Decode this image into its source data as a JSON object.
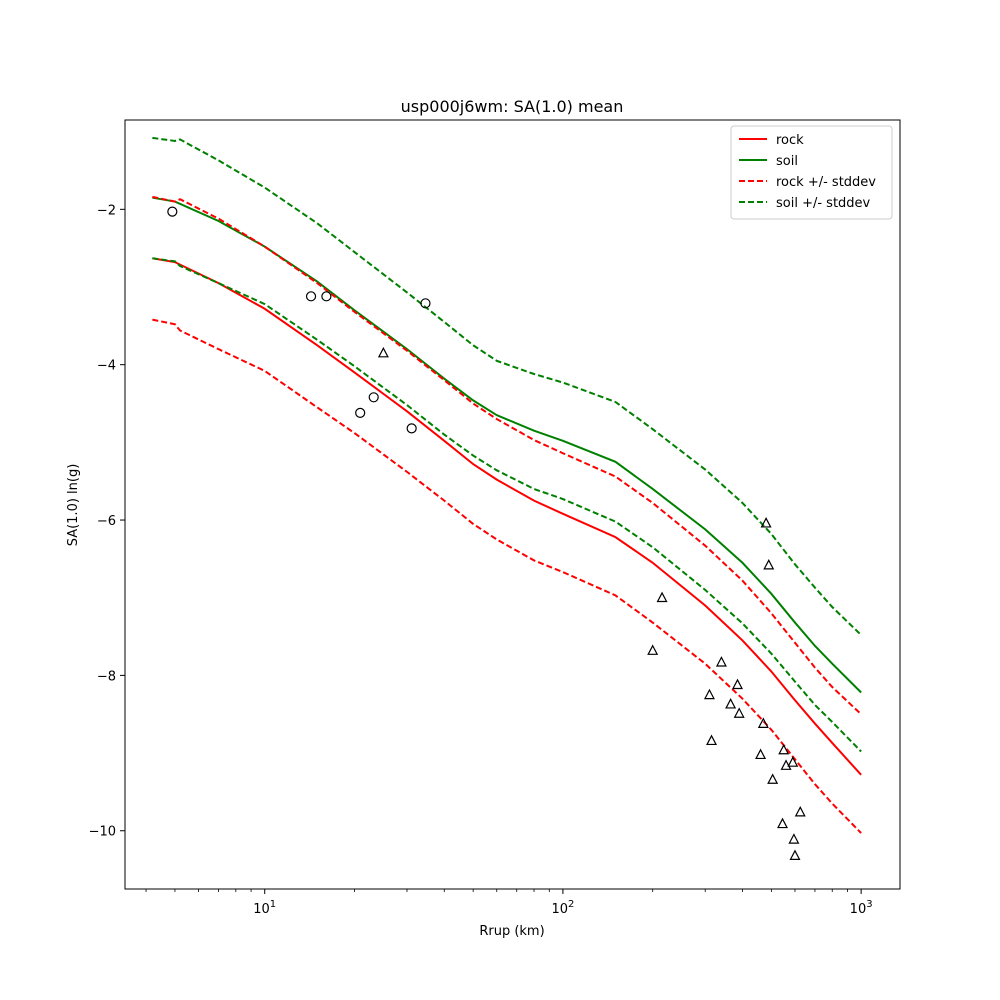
{
  "chart_data": {
    "type": "line",
    "title": "usp000j6wm: SA(1.0) mean",
    "xlabel": "Rrup (km)",
    "ylabel": "SA(1.0) ln(g)",
    "xscale": "log",
    "xlim": [
      3.4,
      1350
    ],
    "ylim": [
      -10.75,
      -0.85
    ],
    "x_ticks": [
      {
        "value": 10,
        "base": "10",
        "exp": "1"
      },
      {
        "value": 100,
        "base": "10",
        "exp": "2"
      },
      {
        "value": 1000,
        "base": "10",
        "exp": "3"
      }
    ],
    "y_ticks": [
      {
        "value": -10,
        "label": "−10"
      },
      {
        "value": -8,
        "label": "−8"
      },
      {
        "value": -6,
        "label": "−6"
      },
      {
        "value": -4,
        "label": "−4"
      },
      {
        "value": -2,
        "label": "−2"
      }
    ],
    "grid": false,
    "legend_position": "top-right",
    "series": [
      {
        "name": "rock",
        "color": "#ff0000",
        "style": "solid",
        "x": [
          4.2,
          5,
          7,
          10,
          15,
          20,
          30,
          40,
          50,
          60,
          80,
          100,
          150,
          200,
          300,
          400,
          500,
          600,
          700,
          800,
          1000
        ],
        "y": [
          -2.63,
          -2.68,
          -2.95,
          -3.28,
          -3.75,
          -4.1,
          -4.6,
          -4.98,
          -5.28,
          -5.48,
          -5.75,
          -5.92,
          -6.22,
          -6.55,
          -7.1,
          -7.55,
          -7.95,
          -8.32,
          -8.62,
          -8.87,
          -9.28
        ]
      },
      {
        "name": "soil",
        "color": "#008000",
        "style": "solid",
        "x": [
          4.2,
          5,
          7,
          10,
          15,
          20,
          30,
          40,
          50,
          60,
          80,
          100,
          150,
          200,
          300,
          400,
          500,
          600,
          700,
          800,
          1000
        ],
        "y": [
          -1.85,
          -1.9,
          -2.15,
          -2.48,
          -2.93,
          -3.3,
          -3.8,
          -4.18,
          -4.46,
          -4.65,
          -4.85,
          -4.98,
          -5.25,
          -5.6,
          -6.12,
          -6.55,
          -6.95,
          -7.32,
          -7.62,
          -7.85,
          -8.22
        ]
      },
      {
        "name": "rock +/- stddev",
        "color": "#ff0000",
        "style": "dashed",
        "x": [
          4.2,
          5,
          5.2,
          7,
          10,
          15,
          20,
          30,
          40,
          50,
          60,
          80,
          100,
          150,
          200,
          300,
          400,
          500,
          600,
          700,
          800,
          1000
        ],
        "y": [
          -3.42,
          -3.48,
          -3.56,
          -3.8,
          -4.08,
          -4.55,
          -4.88,
          -5.38,
          -5.75,
          -6.05,
          -6.25,
          -6.52,
          -6.67,
          -6.97,
          -7.32,
          -7.85,
          -8.3,
          -8.7,
          -9.08,
          -9.4,
          -9.65,
          -10.03
        ]
      },
      {
        "name": "rock +/- stddev",
        "color": "#ff0000",
        "style": "dashed",
        "x": [
          4.2,
          5,
          5.2,
          7,
          10,
          15,
          20,
          30,
          40,
          50,
          60,
          80,
          100,
          150,
          200,
          300,
          400,
          500,
          600,
          700,
          800,
          1000
        ],
        "y": [
          -1.84,
          -1.9,
          -1.87,
          -2.12,
          -2.48,
          -2.95,
          -3.32,
          -3.82,
          -4.2,
          -4.5,
          -4.7,
          -4.97,
          -5.14,
          -5.44,
          -5.78,
          -6.33,
          -6.78,
          -7.2,
          -7.58,
          -7.9,
          -8.15,
          -8.5
        ]
      },
      {
        "name": "soil +/- stddev",
        "color": "#008000",
        "style": "dashed",
        "x": [
          4.2,
          5,
          5.2,
          7,
          10,
          15,
          20,
          30,
          40,
          50,
          60,
          80,
          100,
          150,
          200,
          300,
          400,
          500,
          600,
          700,
          800,
          1000
        ],
        "y": [
          -2.63,
          -2.67,
          -2.73,
          -2.95,
          -3.22,
          -3.68,
          -4.02,
          -4.52,
          -4.9,
          -5.17,
          -5.36,
          -5.6,
          -5.73,
          -6.02,
          -6.35,
          -6.9,
          -7.33,
          -7.72,
          -8.08,
          -8.38,
          -8.6,
          -8.98
        ]
      },
      {
        "name": "soil +/- stddev",
        "color": "#008000",
        "style": "dashed",
        "x": [
          4.2,
          5,
          5.2,
          7,
          10,
          15,
          20,
          30,
          40,
          50,
          60,
          80,
          100,
          150,
          200,
          300,
          400,
          500,
          600,
          700,
          800,
          1000
        ],
        "y": [
          -1.08,
          -1.12,
          -1.1,
          -1.37,
          -1.72,
          -2.18,
          -2.55,
          -3.07,
          -3.45,
          -3.75,
          -3.95,
          -4.12,
          -4.23,
          -4.48,
          -4.83,
          -5.35,
          -5.78,
          -6.18,
          -6.57,
          -6.87,
          -7.12,
          -7.48
        ]
      }
    ],
    "points": [
      {
        "marker": "circle",
        "x": [
          4.9,
          14.3,
          16.1,
          20.9,
          23.2,
          31.1,
          34.6
        ],
        "y": [
          -2.03,
          -3.12,
          -3.12,
          -4.62,
          -4.42,
          -4.82,
          -3.21
        ]
      },
      {
        "marker": "triangle",
        "x": [
          25,
          200,
          215,
          310,
          315,
          340,
          365,
          385,
          390,
          460,
          470,
          480,
          490,
          505,
          545,
          550,
          560,
          590,
          595,
          600,
          625
        ],
        "y": [
          -3.85,
          -7.68,
          -7.0,
          -8.25,
          -8.84,
          -7.83,
          -8.37,
          -8.12,
          -8.49,
          -9.02,
          -8.62,
          -6.04,
          -6.58,
          -9.34,
          -9.91,
          -8.96,
          -9.16,
          -9.12,
          -10.11,
          -10.32,
          -9.76
        ]
      }
    ]
  }
}
